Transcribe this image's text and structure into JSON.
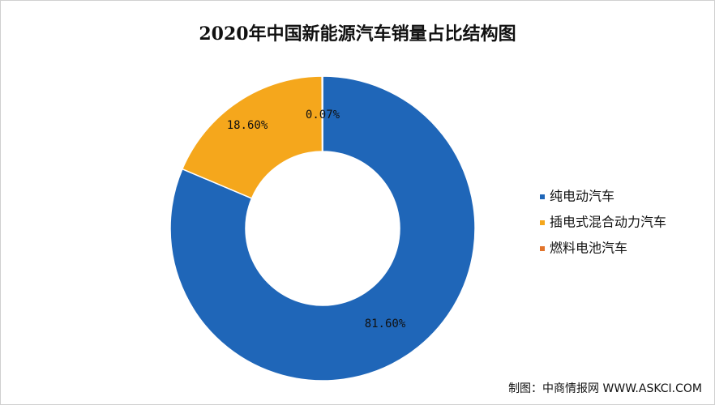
{
  "chart_data": {
    "type": "donut",
    "title": "2020年中国新能源汽车销量占比结构图",
    "categories": [
      "纯电动汽车",
      "插电式混合动力汽车",
      "燃料电池汽车"
    ],
    "values": [
      81.6,
      18.6,
      0.07
    ],
    "value_labels": [
      "81.60%",
      "18.60%",
      "0.07%"
    ],
    "colors": [
      "#1f66b8",
      "#f5a71c",
      "#e2742b"
    ],
    "legend": "right",
    "source": "制图：中商情报网 WWW.ASKCI.COM"
  }
}
